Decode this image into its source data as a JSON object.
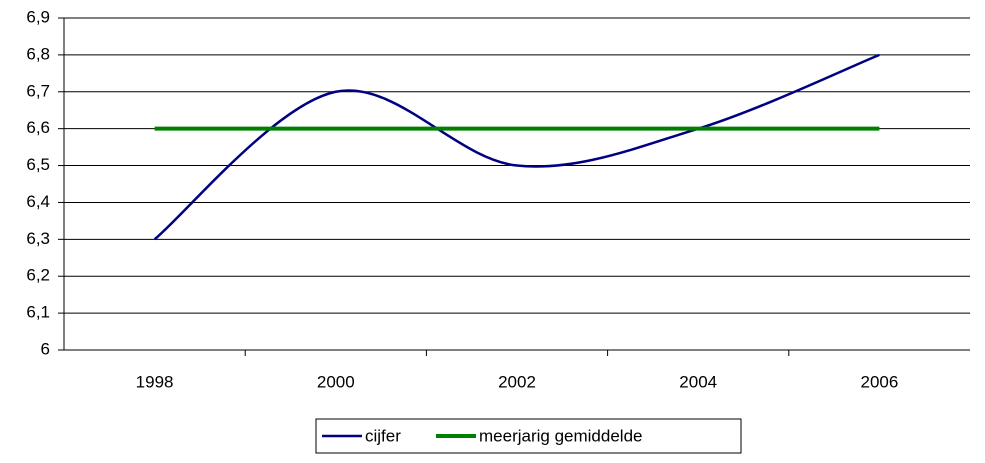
{
  "chart_data": {
    "type": "line",
    "categories": [
      "1998",
      "2000",
      "2002",
      "2004",
      "2006"
    ],
    "series": [
      {
        "name": "cijfer",
        "color": "#000080",
        "values": [
          6.3,
          6.7,
          6.5,
          6.6,
          6.8
        ],
        "smooth": true
      },
      {
        "name": "meerjarig gemiddelde",
        "color": "#008000",
        "values": [
          6.6,
          6.6,
          6.6,
          6.6,
          6.6
        ],
        "smooth": false
      }
    ],
    "ylim": [
      6,
      6.9
    ],
    "yticks": [
      6,
      {
        "value": 6.1,
        "label": "6,1"
      },
      {
        "value": 6.2,
        "label": "6,2"
      },
      {
        "value": 6.3,
        "label": "6,3"
      },
      {
        "value": 6.4,
        "label": "6,4"
      },
      {
        "value": 6.5,
        "label": "6,5"
      },
      {
        "value": 6.6,
        "label": "6,6"
      },
      {
        "value": 6.7,
        "label": "6,7"
      },
      {
        "value": 6.8,
        "label": "6,8"
      },
      {
        "value": 6.9,
        "label": "6,9"
      }
    ],
    "grid": true,
    "legend": "bottom"
  }
}
